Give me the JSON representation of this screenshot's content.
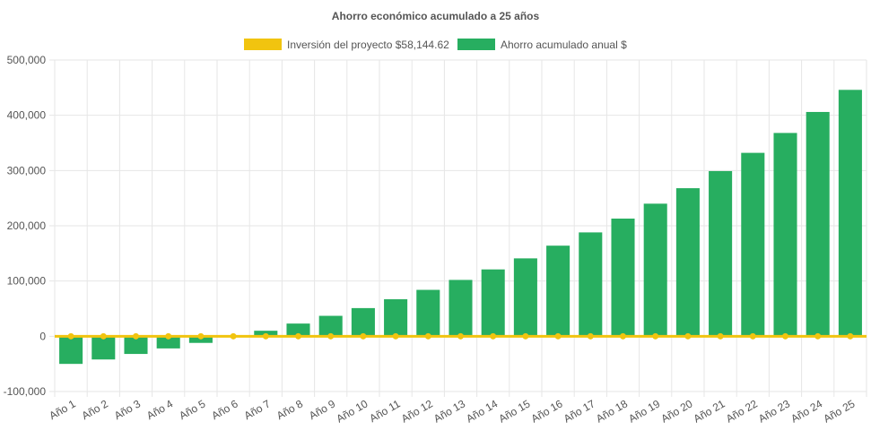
{
  "chart_data": {
    "type": "bar",
    "title": "Ahorro económico acumulado a 25 años",
    "xlabel": "",
    "ylabel": "",
    "ylim": [
      -100000,
      500000
    ],
    "yticks": [
      500000,
      400000,
      300000,
      200000,
      100000,
      0,
      -100000
    ],
    "ytick_labels": [
      "500,000",
      "400,000",
      "300,000",
      "200,000",
      "100,000",
      "0",
      "-100,000"
    ],
    "grid": true,
    "legend_position": "top",
    "categories": [
      "Año 1",
      "Año 2",
      "Año 3",
      "Año 4",
      "Año 5",
      "Año 6",
      "Año 7",
      "Año 8",
      "Año 9",
      "Año 10",
      "Año 11",
      "Año 12",
      "Año 13",
      "Año 14",
      "Año 15",
      "Año 16",
      "Año 17",
      "Año 18",
      "Año 19",
      "Año 20",
      "Año 21",
      "Año 22",
      "Año 23",
      "Año 24",
      "Año 25"
    ],
    "series": [
      {
        "name": "Inversión del proyecto $58,144.62",
        "type": "line",
        "color": "#f1c40f",
        "values": [
          0,
          0,
          0,
          0,
          0,
          0,
          0,
          0,
          0,
          0,
          0,
          0,
          0,
          0,
          0,
          0,
          0,
          0,
          0,
          0,
          0,
          0,
          0,
          0,
          0
        ]
      },
      {
        "name": "Ahorro acumulado anual $",
        "type": "bar",
        "color": "#27ae60",
        "values": [
          -50000,
          -42000,
          -32000,
          -22000,
          -12000,
          -1000,
          10000,
          23000,
          37000,
          51000,
          67000,
          84000,
          102000,
          121000,
          141000,
          164000,
          188000,
          213000,
          240000,
          268000,
          299000,
          332000,
          368000,
          406000,
          446000
        ]
      }
    ]
  }
}
